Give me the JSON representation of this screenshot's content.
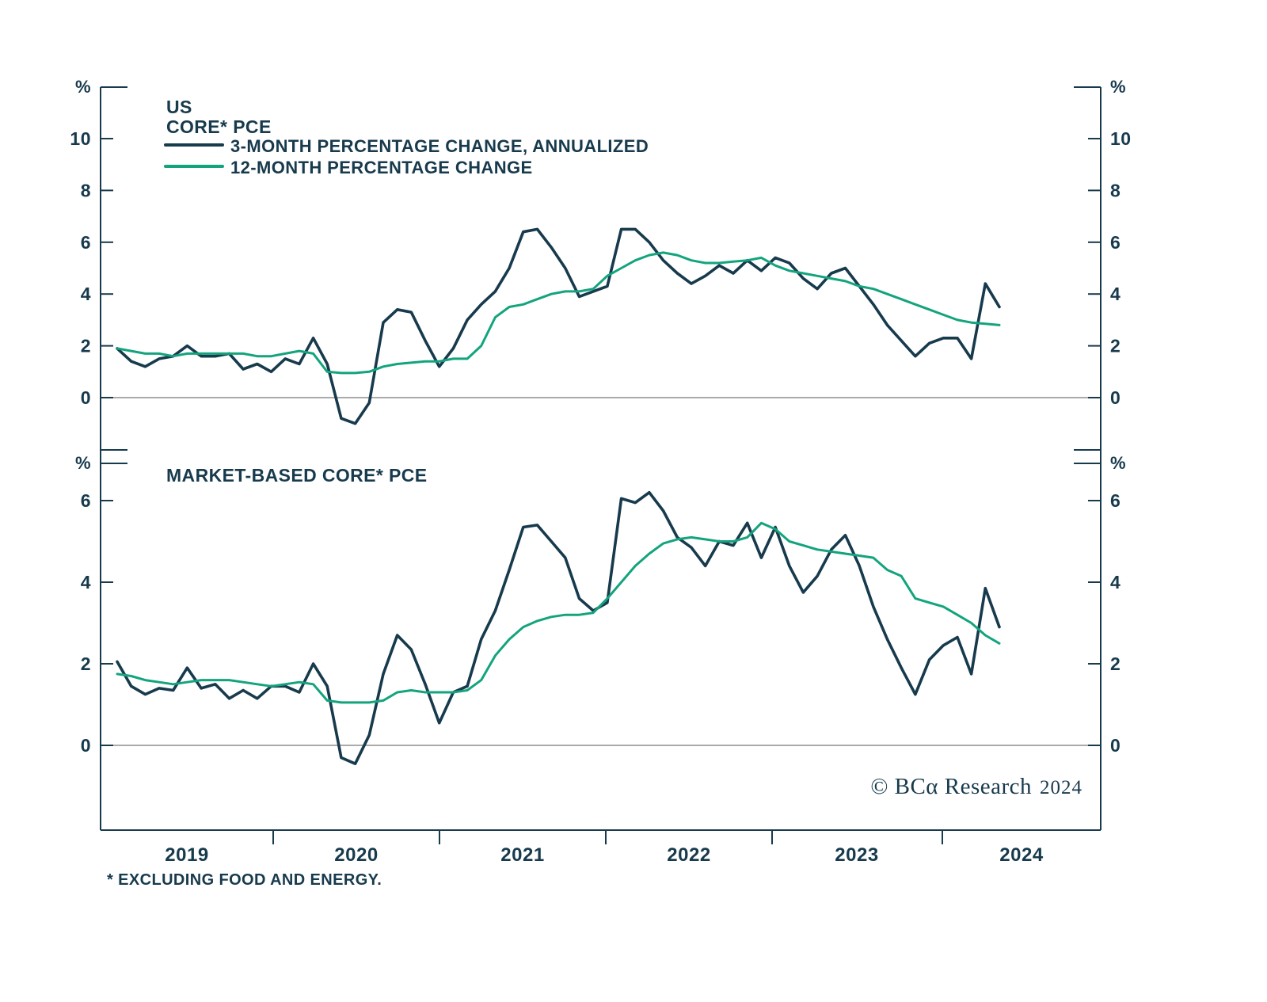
{
  "page": {
    "background": "#ffffff",
    "text_color": "#173a4d"
  },
  "branding": {
    "copyright_main": "© BCα Research",
    "copyright_year": "2024"
  },
  "footnote": "* EXCLUDING FOOD AND ENERGY.",
  "axis": {
    "percent_symbol": "%",
    "years": [
      "2019",
      "2020",
      "2021",
      "2022",
      "2023",
      "2024"
    ]
  },
  "colors": {
    "line_3m": "#173a4d",
    "line_12m": "#13a47d",
    "zero_line": "#8f8f8f",
    "frame": "#173a4d"
  },
  "chart_data": [
    {
      "type": "line",
      "panel": "top",
      "title": [
        "US",
        "CORE* PCE"
      ],
      "x_start": "2019-01",
      "x_end": "2024-04",
      "x_frequency": "monthly",
      "ylim": [
        -2,
        12
      ],
      "yticks": [
        0,
        2,
        4,
        6,
        8,
        10
      ],
      "grid": false,
      "legend_position": "top-left",
      "series": [
        {
          "name": "3-MONTH PERCENTAGE CHANGE, ANNUALIZED",
          "color": "#173a4d",
          "values": [
            1.9,
            1.4,
            1.2,
            1.5,
            1.6,
            2.0,
            1.6,
            1.6,
            1.7,
            1.1,
            1.3,
            1.0,
            1.5,
            1.3,
            2.3,
            1.3,
            -0.8,
            -1.0,
            -0.2,
            2.9,
            3.4,
            3.3,
            2.2,
            1.2,
            1.9,
            3.0,
            3.6,
            4.1,
            5.0,
            6.4,
            6.5,
            5.8,
            5.0,
            3.9,
            4.1,
            4.3,
            6.5,
            6.5,
            6.0,
            5.3,
            4.8,
            4.4,
            4.7,
            5.1,
            4.8,
            5.3,
            4.9,
            5.4,
            5.2,
            4.6,
            4.2,
            4.8,
            5.0,
            4.3,
            3.6,
            2.8,
            2.2,
            1.6,
            2.1,
            2.3,
            2.3,
            1.5,
            4.4,
            3.5
          ]
        },
        {
          "name": "12-MONTH PERCENTAGE CHANGE",
          "color": "#13a47d",
          "values": [
            1.9,
            1.8,
            1.7,
            1.7,
            1.6,
            1.7,
            1.7,
            1.7,
            1.7,
            1.7,
            1.6,
            1.6,
            1.7,
            1.8,
            1.7,
            1.0,
            0.95,
            0.95,
            1.0,
            1.2,
            1.3,
            1.35,
            1.4,
            1.4,
            1.5,
            1.5,
            2.0,
            3.1,
            3.5,
            3.6,
            3.8,
            4.0,
            4.1,
            4.1,
            4.2,
            4.7,
            5.0,
            5.3,
            5.5,
            5.6,
            5.5,
            5.3,
            5.2,
            5.2,
            5.25,
            5.3,
            5.4,
            5.1,
            4.9,
            4.8,
            4.7,
            4.6,
            4.5,
            4.3,
            4.2,
            4.0,
            3.8,
            3.6,
            3.4,
            3.2,
            3.0,
            2.9,
            2.85,
            2.8
          ]
        }
      ]
    },
    {
      "type": "line",
      "panel": "bottom",
      "title": [
        "MARKET-BASED CORE* PCE"
      ],
      "x_start": "2019-01",
      "x_end": "2024-04",
      "x_frequency": "monthly",
      "ylim": [
        -2.1,
        6.9
      ],
      "yticks": [
        0,
        2,
        4,
        6
      ],
      "grid": false,
      "series": [
        {
          "name": "3-MONTH PERCENTAGE CHANGE, ANNUALIZED",
          "color": "#173a4d",
          "values": [
            2.05,
            1.45,
            1.25,
            1.4,
            1.35,
            1.9,
            1.4,
            1.5,
            1.15,
            1.35,
            1.15,
            1.45,
            1.45,
            1.3,
            2.0,
            1.45,
            -0.3,
            -0.45,
            0.25,
            1.75,
            2.7,
            2.35,
            1.5,
            0.55,
            1.3,
            1.45,
            2.6,
            3.3,
            4.3,
            5.35,
            5.4,
            5.0,
            4.6,
            3.6,
            3.3,
            3.5,
            6.05,
            5.95,
            6.2,
            5.75,
            5.1,
            4.85,
            4.4,
            5.0,
            4.9,
            5.45,
            4.6,
            5.35,
            4.4,
            3.75,
            4.15,
            4.8,
            5.15,
            4.4,
            3.4,
            2.6,
            1.9,
            1.25,
            2.1,
            2.45,
            2.65,
            1.75,
            3.85,
            2.9
          ]
        },
        {
          "name": "12-MONTH PERCENTAGE CHANGE",
          "color": "#13a47d",
          "values": [
            1.75,
            1.7,
            1.6,
            1.55,
            1.5,
            1.55,
            1.6,
            1.6,
            1.6,
            1.55,
            1.5,
            1.45,
            1.5,
            1.55,
            1.5,
            1.1,
            1.05,
            1.05,
            1.05,
            1.1,
            1.3,
            1.35,
            1.3,
            1.3,
            1.3,
            1.35,
            1.6,
            2.2,
            2.6,
            2.9,
            3.05,
            3.15,
            3.2,
            3.2,
            3.25,
            3.6,
            4.0,
            4.4,
            4.7,
            4.95,
            5.05,
            5.1,
            5.05,
            5.0,
            5.0,
            5.1,
            5.45,
            5.3,
            5.0,
            4.9,
            4.8,
            4.75,
            4.7,
            4.65,
            4.6,
            4.3,
            4.15,
            3.6,
            3.5,
            3.4,
            3.2,
            3.0,
            2.7,
            2.5
          ]
        }
      ]
    }
  ]
}
